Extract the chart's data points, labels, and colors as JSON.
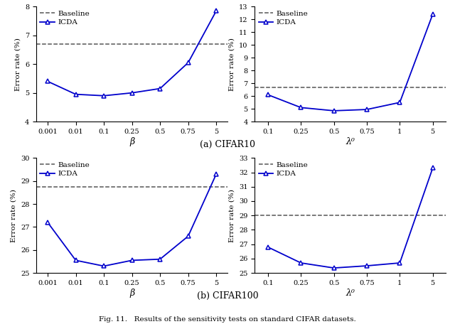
{
  "top_left": {
    "x_labels": [
      "0.001",
      "0.01",
      "0.1",
      "0.25",
      "0.5",
      "0.75",
      "5"
    ],
    "x_vals": [
      0,
      1,
      2,
      3,
      4,
      5,
      6
    ],
    "icda_y": [
      5.4,
      4.95,
      4.9,
      5.0,
      5.15,
      6.05,
      7.85
    ],
    "baseline": 6.7,
    "ylabel": "Error rate (%)",
    "xlabel": "β",
    "ylim": [
      4,
      8
    ],
    "yticks": [
      4,
      5,
      6,
      7,
      8
    ]
  },
  "top_right": {
    "x_labels": [
      "0.1",
      "0.25",
      "0.5",
      "0.75",
      "1",
      "5"
    ],
    "x_vals": [
      0,
      1,
      2,
      3,
      4,
      5
    ],
    "icda_y": [
      6.1,
      5.1,
      4.85,
      4.95,
      5.5,
      12.4
    ],
    "baseline": 6.7,
    "ylabel": "Error rate (%)",
    "xlabel": "λ⁰",
    "ylim": [
      4,
      13
    ],
    "yticks": [
      4,
      5,
      6,
      7,
      8,
      9,
      10,
      11,
      12,
      13
    ]
  },
  "bottom_left": {
    "x_labels": [
      "0.001",
      "0.01",
      "0.1",
      "0.25",
      "0.5",
      "0.75",
      "5"
    ],
    "x_vals": [
      0,
      1,
      2,
      3,
      4,
      5,
      6
    ],
    "icda_y": [
      27.2,
      25.55,
      25.3,
      25.55,
      25.6,
      26.6,
      29.3
    ],
    "baseline": 28.75,
    "ylabel": "Error rate (%)",
    "xlabel": "β",
    "ylim": [
      25,
      30
    ],
    "yticks": [
      25,
      26,
      27,
      28,
      29,
      30
    ]
  },
  "bottom_right": {
    "x_labels": [
      "0.1",
      "0.25",
      "0.5",
      "0.75",
      "1",
      "5"
    ],
    "x_vals": [
      0,
      1,
      2,
      3,
      4,
      5
    ],
    "icda_y": [
      26.8,
      25.7,
      25.35,
      25.5,
      25.7,
      32.3
    ],
    "baseline": 29.0,
    "ylabel": "Error rate (%)",
    "xlabel": "λ⁰",
    "ylim": [
      25,
      33
    ],
    "yticks": [
      25,
      26,
      27,
      28,
      29,
      30,
      31,
      32,
      33
    ]
  },
  "line_color": "#0000cc",
  "baseline_color": "#555555",
  "marker": "^",
  "markersize": 4,
  "linewidth": 1.3,
  "caption_a": "(a) CIFAR10",
  "caption_b": "(b) CIFAR100",
  "fig_caption": "Fig. 11.   Results of the sensitivity tests on standard CIFAR datasets.",
  "legend_baseline": "Baseline",
  "legend_icda": "ICDA"
}
